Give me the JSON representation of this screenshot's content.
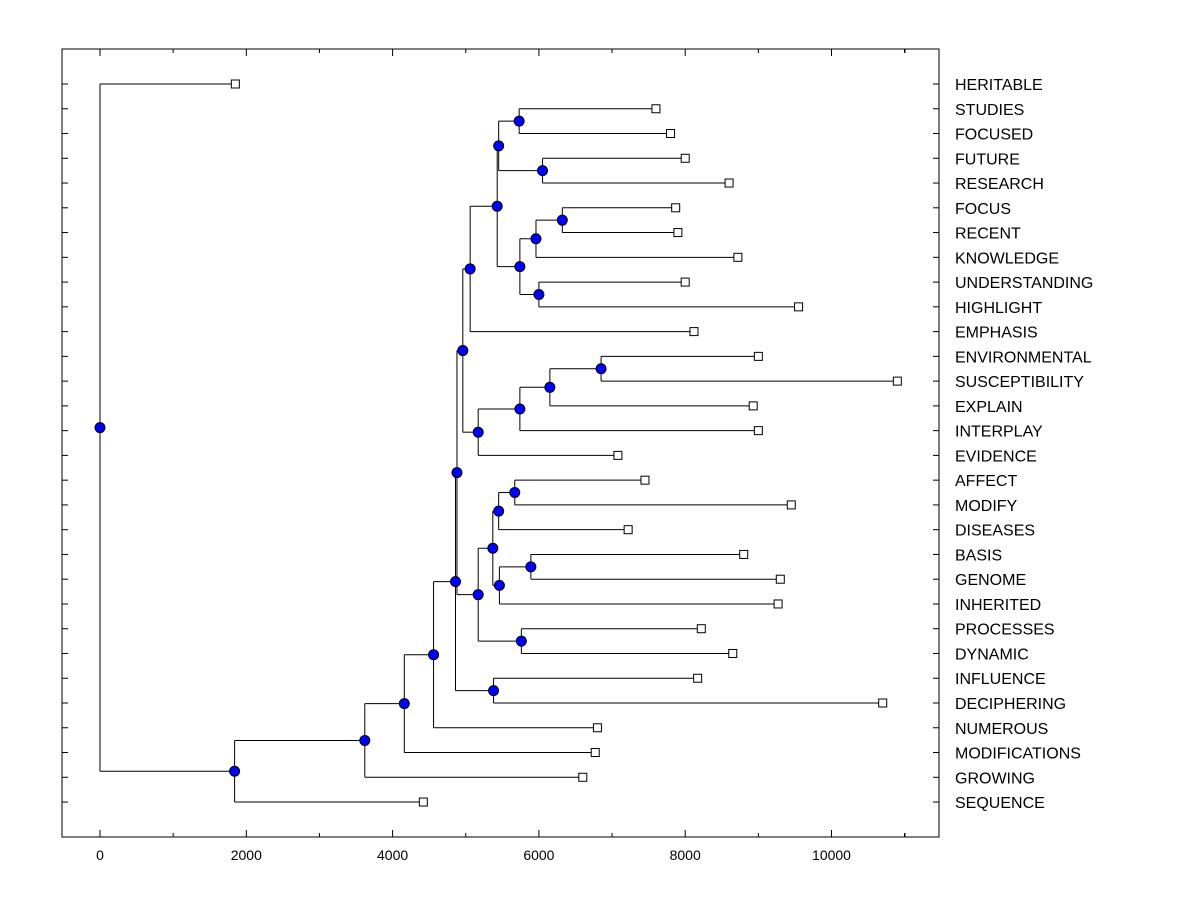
{
  "chart_data": {
    "type": "dendrogram",
    "orientation": "horizontal",
    "x_ticks": [
      0,
      2000,
      4000,
      6000,
      8000,
      10000
    ],
    "xlim": [
      -500,
      11500
    ],
    "leaves": [
      {
        "label": "HERITABLE",
        "value": 1850
      },
      {
        "label": "STUDIES",
        "value": 7600
      },
      {
        "label": "FOCUSED",
        "value": 7800
      },
      {
        "label": "FUTURE",
        "value": 8000
      },
      {
        "label": "RESEARCH",
        "value": 8600
      },
      {
        "label": "FOCUS",
        "value": 7870
      },
      {
        "label": "RECENT",
        "value": 7900
      },
      {
        "label": "KNOWLEDGE",
        "value": 8720
      },
      {
        "label": "UNDERSTANDING",
        "value": 8000
      },
      {
        "label": "HIGHLIGHT",
        "value": 9550
      },
      {
        "label": "EMPHASIS",
        "value": 8120
      },
      {
        "label": "ENVIRONMENTAL",
        "value": 9000
      },
      {
        "label": "SUSCEPTIBILITY",
        "value": 10900
      },
      {
        "label": "EXPLAIN",
        "value": 8930
      },
      {
        "label": "INTERPLAY",
        "value": 9000
      },
      {
        "label": "EVIDENCE",
        "value": 7080
      },
      {
        "label": "AFFECT",
        "value": 7450
      },
      {
        "label": "MODIFY",
        "value": 9450
      },
      {
        "label": "DISEASES",
        "value": 7220
      },
      {
        "label": "BASIS",
        "value": 8800
      },
      {
        "label": "GENOME",
        "value": 9300
      },
      {
        "label": "INHERITED",
        "value": 9270
      },
      {
        "label": "PROCESSES",
        "value": 8220
      },
      {
        "label": "DYNAMIC",
        "value": 8650
      },
      {
        "label": "INFLUENCE",
        "value": 8170
      },
      {
        "label": "DECIPHERING",
        "value": 10700
      },
      {
        "label": "NUMEROUS",
        "value": 6800
      },
      {
        "label": "MODIFICATIONS",
        "value": 6770
      },
      {
        "label": "GROWING",
        "value": 6600
      },
      {
        "label": "SEQUENCE",
        "value": 4420
      }
    ],
    "merges": [
      {
        "id": "m1",
        "height": 5730,
        "children": [
          "L1",
          "L2"
        ]
      },
      {
        "id": "m2",
        "height": 6050,
        "children": [
          "L3",
          "L4"
        ]
      },
      {
        "id": "m3",
        "height": 5450,
        "children": [
          "m1",
          "m2"
        ]
      },
      {
        "id": "m4",
        "height": 6320,
        "children": [
          "L5",
          "L6"
        ]
      },
      {
        "id": "m5",
        "height": 5960,
        "children": [
          "m4",
          "L7"
        ]
      },
      {
        "id": "m6",
        "height": 6000,
        "children": [
          "L8",
          "L9"
        ]
      },
      {
        "id": "m7",
        "height": 5740,
        "children": [
          "m5",
          "m6"
        ]
      },
      {
        "id": "m8",
        "height": 5430,
        "children": [
          "m3",
          "m7"
        ]
      },
      {
        "id": "m9",
        "height": 5060,
        "children": [
          "m8",
          "L10"
        ]
      },
      {
        "id": "m10",
        "height": 6850,
        "children": [
          "L11",
          "L12"
        ]
      },
      {
        "id": "m11",
        "height": 6150,
        "children": [
          "m10",
          "L13"
        ]
      },
      {
        "id": "m12",
        "height": 5740,
        "children": [
          "m11",
          "L14"
        ]
      },
      {
        "id": "m13",
        "height": 5170,
        "children": [
          "m12",
          "L15"
        ]
      },
      {
        "id": "m14",
        "height": 4960,
        "children": [
          "m9",
          "m13"
        ]
      },
      {
        "id": "m15",
        "height": 5670,
        "children": [
          "L16",
          "L17"
        ]
      },
      {
        "id": "m16",
        "height": 5450,
        "children": [
          "m15",
          "L18"
        ]
      },
      {
        "id": "m17",
        "height": 5890,
        "children": [
          "L19",
          "L20"
        ]
      },
      {
        "id": "m18",
        "height": 5460,
        "children": [
          "m17",
          "L21"
        ]
      },
      {
        "id": "m19",
        "height": 5370,
        "children": [
          "m16",
          "m18"
        ]
      },
      {
        "id": "m20",
        "height": 5760,
        "children": [
          "L22",
          "L23"
        ]
      },
      {
        "id": "m21",
        "height": 5170,
        "children": [
          "m19",
          "m20"
        ]
      },
      {
        "id": "m22",
        "height": 4880,
        "children": [
          "m14",
          "m21"
        ]
      },
      {
        "id": "m23",
        "height": 5380,
        "children": [
          "L24",
          "L25"
        ]
      },
      {
        "id": "m24",
        "height": 4860,
        "children": [
          "m22",
          "m23"
        ]
      },
      {
        "id": "m25",
        "height": 4560,
        "children": [
          "m24",
          "L26"
        ]
      },
      {
        "id": "m26",
        "height": 4160,
        "children": [
          "m25",
          "L27"
        ]
      },
      {
        "id": "m27",
        "height": 3620,
        "children": [
          "m26",
          "L28"
        ]
      },
      {
        "id": "m28",
        "height": 1840,
        "children": [
          "m27",
          "L29"
        ]
      },
      {
        "id": "m29",
        "height": 0,
        "children": [
          "L0",
          "m28"
        ]
      }
    ]
  }
}
